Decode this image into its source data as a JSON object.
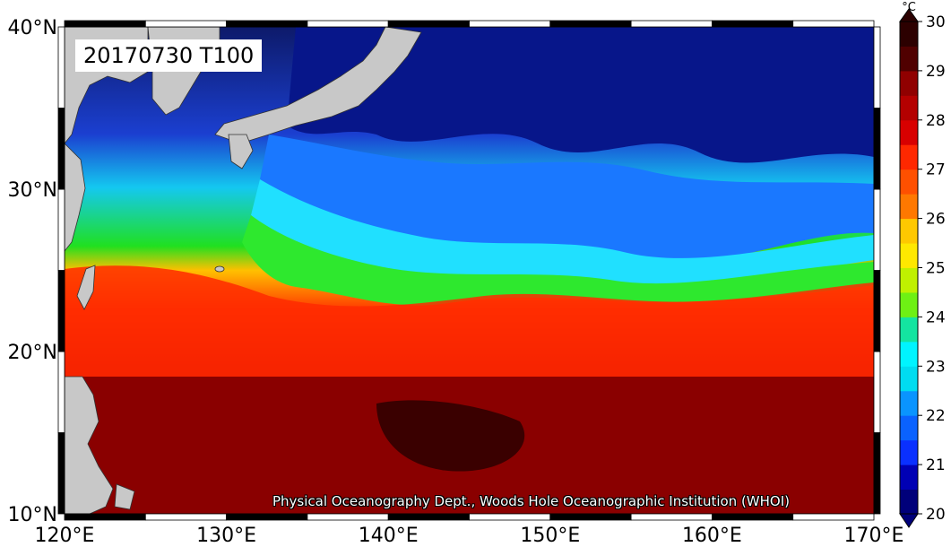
{
  "map": {
    "title": "20170730 T100",
    "credit": "Physical Oceanography Dept., Woods Hole Oceanographic Institution (WHOI)",
    "lon_labels": [
      "120°E",
      "130°E",
      "140°E",
      "150°E",
      "160°E",
      "170°E"
    ],
    "lat_labels": [
      "40°N",
      "30°N",
      "20°N",
      "10°N"
    ],
    "extent": {
      "lon": [
        120,
        170
      ],
      "lat": [
        10,
        40
      ]
    },
    "field": "sea temperature at 100 m",
    "land_color": "#c8c8c8"
  },
  "colorbar": {
    "unit": "°C",
    "ticks": [
      "30",
      "29",
      "28",
      "27",
      "26",
      "25",
      "24",
      "23",
      "22",
      "21",
      "20"
    ],
    "range": [
      20,
      30
    ],
    "step": 0.5,
    "colors": [
      "#00007a",
      "#0000b4",
      "#0000e8",
      "#0a30ff",
      "#0a62ff",
      "#0a94ff",
      "#00c0ff",
      "#00dcf0",
      "#00f4ff",
      "#14e4a0",
      "#20e820",
      "#6ef014",
      "#c0f000",
      "#ffe800",
      "#ffc800",
      "#ffa000",
      "#ff7800",
      "#ff5000",
      "#ff2800",
      "#f01800",
      "#d80000",
      "#b40000",
      "#900000",
      "#700000",
      "#500000",
      "#2c0000"
    ]
  }
}
